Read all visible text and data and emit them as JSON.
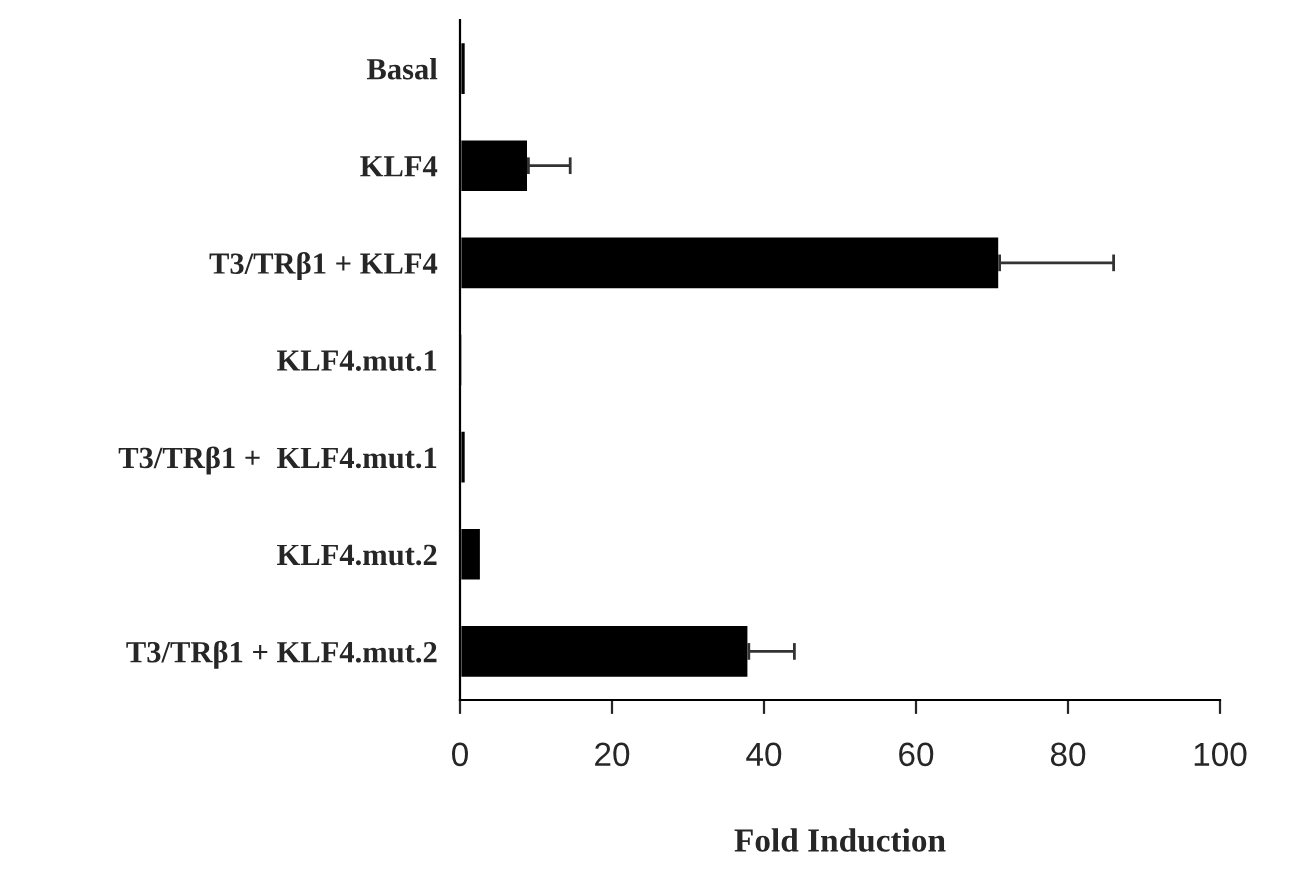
{
  "chart_data": {
    "type": "bar",
    "orientation": "horizontal",
    "xlabel": "Fold Induction",
    "categories": [
      "Basal",
      "KLF4",
      "T3/TRβ1 + KLF4",
      "KLF4.mut.1",
      "T3/TRβ1 +  KLF4.mut.1",
      "KLF4.mut.2",
      "T3/TRβ1 + KLF4.mut.2"
    ],
    "values": [
      0.8,
      9,
      71,
      0.4,
      0.8,
      2.8,
      38
    ],
    "errors": [
      null,
      [
        9,
        14.5
      ],
      [
        71,
        86
      ],
      null,
      null,
      null,
      [
        38,
        44
      ]
    ],
    "color": "#000000",
    "xlim": [
      0,
      100
    ],
    "xticks": [
      0,
      20,
      40,
      60,
      80,
      100
    ],
    "grid": false
  }
}
